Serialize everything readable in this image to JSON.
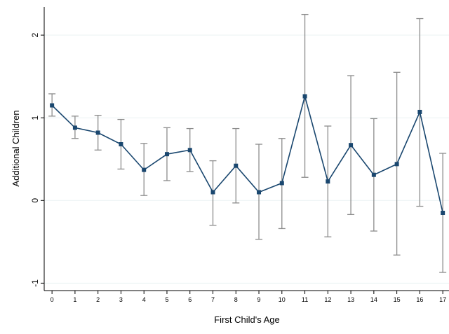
{
  "chart_data": {
    "type": "line",
    "x_label": "First Child's Age",
    "y_label": "Additional Children",
    "x": [
      0,
      1,
      2,
      3,
      4,
      5,
      6,
      7,
      8,
      9,
      10,
      11,
      12,
      13,
      14,
      15,
      16,
      17
    ],
    "values": [
      1.15,
      0.88,
      0.82,
      0.68,
      0.37,
      0.56,
      0.61,
      0.1,
      0.42,
      0.1,
      0.21,
      1.26,
      0.23,
      0.67,
      0.31,
      0.44,
      1.07,
      -0.15
    ],
    "upper": [
      1.29,
      1.02,
      1.03,
      0.98,
      0.69,
      0.88,
      0.87,
      0.48,
      0.87,
      0.68,
      0.75,
      2.25,
      0.9,
      1.51,
      0.99,
      1.55,
      2.2,
      0.57
    ],
    "lower": [
      1.02,
      0.75,
      0.61,
      0.38,
      0.06,
      0.24,
      0.35,
      -0.3,
      -0.03,
      -0.47,
      -0.34,
      0.28,
      -0.44,
      -0.17,
      -0.37,
      -0.66,
      -0.07,
      -0.87
    ],
    "color": "#1a476f",
    "error_color": "#8c8c8c",
    "xlim": [
      -0.34,
      17.27
    ],
    "ylim": [
      -1.09,
      2.34
    ],
    "xticks": [
      0,
      1,
      2,
      3,
      4,
      5,
      6,
      7,
      8,
      9,
      10,
      11,
      12,
      13,
      14,
      15,
      16,
      17
    ],
    "yticks": [
      -1,
      0,
      1,
      2
    ],
    "grid": true
  }
}
